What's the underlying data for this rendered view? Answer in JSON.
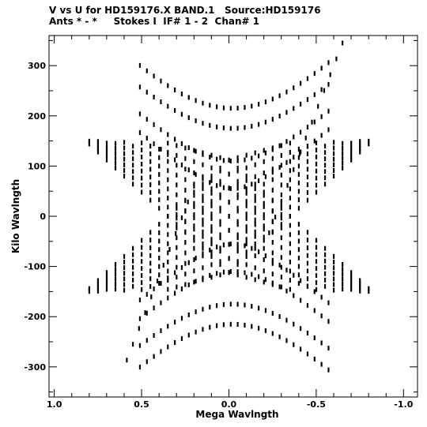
{
  "header": {
    "line1": "V vs U for HD159176.X BAND.1   Source:HD159176",
    "line2": "Ants * - *     Stokes I  IF# 1 - 2  Chan# 1"
  },
  "chart_data": {
    "type": "scatter",
    "title": "V vs U for HD159176.X BAND.1   Source:HD159176",
    "subtitle": "Ants * - *     Stokes I  IF# 1 - 2  Chan# 1",
    "xlabel": "Mega Wavlngth",
    "ylabel": "Kilo Wavlngth",
    "xlim": [
      1.03,
      -1.08
    ],
    "ylim": [
      -360,
      360
    ],
    "x_ticks": [
      1.0,
      0.5,
      0.0,
      -0.5,
      -1.0
    ],
    "x_tick_labels": [
      "1.0",
      "0.5",
      "0.0",
      "-0.5",
      "-1.0"
    ],
    "y_ticks": [
      300,
      200,
      100,
      0,
      -100,
      -200,
      -300
    ],
    "y_tick_labels": [
      "300",
      "200",
      "100",
      "0",
      "-100",
      "-200",
      "-300"
    ],
    "grid": false,
    "dot_color": "#000000",
    "series": [
      {
        "tracks": [
          [
            0.52,
            100,
            -0.05,
            -10
          ],
          [
            0.4,
            100,
            -0.1,
            -15
          ],
          [
            0.3,
            100,
            -0.15,
            -25
          ]
        ],
        "values": []
      },
      {
        "tracks": [
          [
            -0.52,
            100,
            0.05,
            -10
          ],
          [
            -0.4,
            100,
            0.1,
            -15
          ],
          [
            -0.3,
            100,
            0.15,
            -25
          ]
        ],
        "values": []
      }
    ]
  }
}
